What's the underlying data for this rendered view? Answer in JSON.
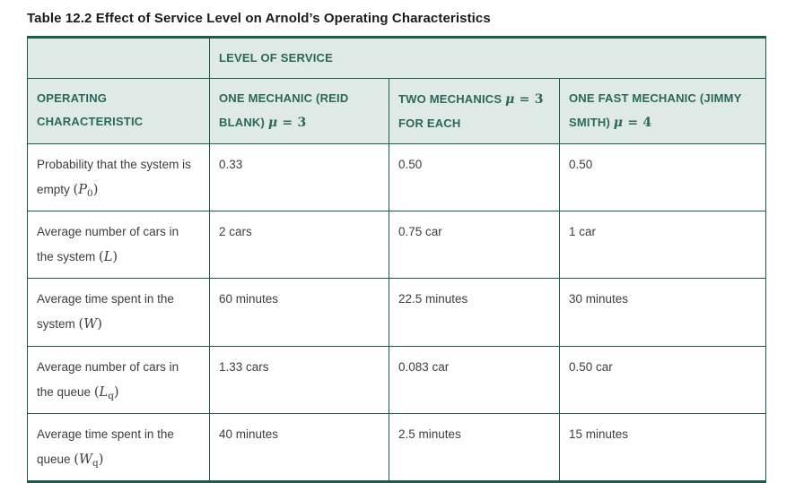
{
  "page": {
    "title": "Table 12.2 Effect of Service Level on Arnold’s Operating Characteristics"
  },
  "colors": {
    "header_bg": "#dfe9e5",
    "border_green": "#1e5b4b",
    "header_text": "#2b685a",
    "body_text": "#3d3d3d",
    "title_text": "#1b1b1b",
    "cell_bg": "#ffffff"
  },
  "table": {
    "spanner_label": "LEVEL OF SERVICE",
    "corner_label": "OPERATING CHARACTERISTIC",
    "columns": [
      {
        "text": "ONE MECHANIC (REID BLANK) ",
        "math_mu": "μ",
        "math_rest": " = 3",
        "after": ""
      },
      {
        "text": "TWO MECHANICS ",
        "math_mu": "μ",
        "math_rest": " = 3",
        "after": " FOR EACH"
      },
      {
        "text": "ONE FAST MECHANIC (JIMMY SMITH) ",
        "math_mu": "μ",
        "math_rest": " = 4",
        "after": ""
      }
    ],
    "rows": [
      {
        "label": "Probability that the system is empty ",
        "sym_open": "(",
        "sym_letter": "P",
        "sym_sub": "0",
        "sym_close": ")",
        "values": [
          "0.33",
          "0.50",
          "0.50"
        ]
      },
      {
        "label": "Average number of cars in the system ",
        "sym_open": "(",
        "sym_letter": "L",
        "sym_sub": "",
        "sym_close": ")",
        "values": [
          "2 cars",
          "0.75 car",
          "1 car"
        ]
      },
      {
        "label": "Average time spent in the system ",
        "sym_open": "(",
        "sym_letter": "W",
        "sym_sub": "",
        "sym_close": ")",
        "values": [
          "60 minutes",
          "22.5 minutes",
          "30 minutes"
        ]
      },
      {
        "label": "Average number of cars in the queue ",
        "sym_open": "(",
        "sym_letter": "L",
        "sym_sub": "q",
        "sym_close": ")",
        "values": [
          "1.33 cars",
          "0.083 car",
          "0.50 car"
        ]
      },
      {
        "label": "Average time spent in the queue ",
        "sym_open": "(",
        "sym_letter": "W",
        "sym_sub": "q",
        "sym_close": ")",
        "values": [
          "40 minutes",
          "2.5 minutes",
          "15 minutes"
        ]
      }
    ]
  }
}
